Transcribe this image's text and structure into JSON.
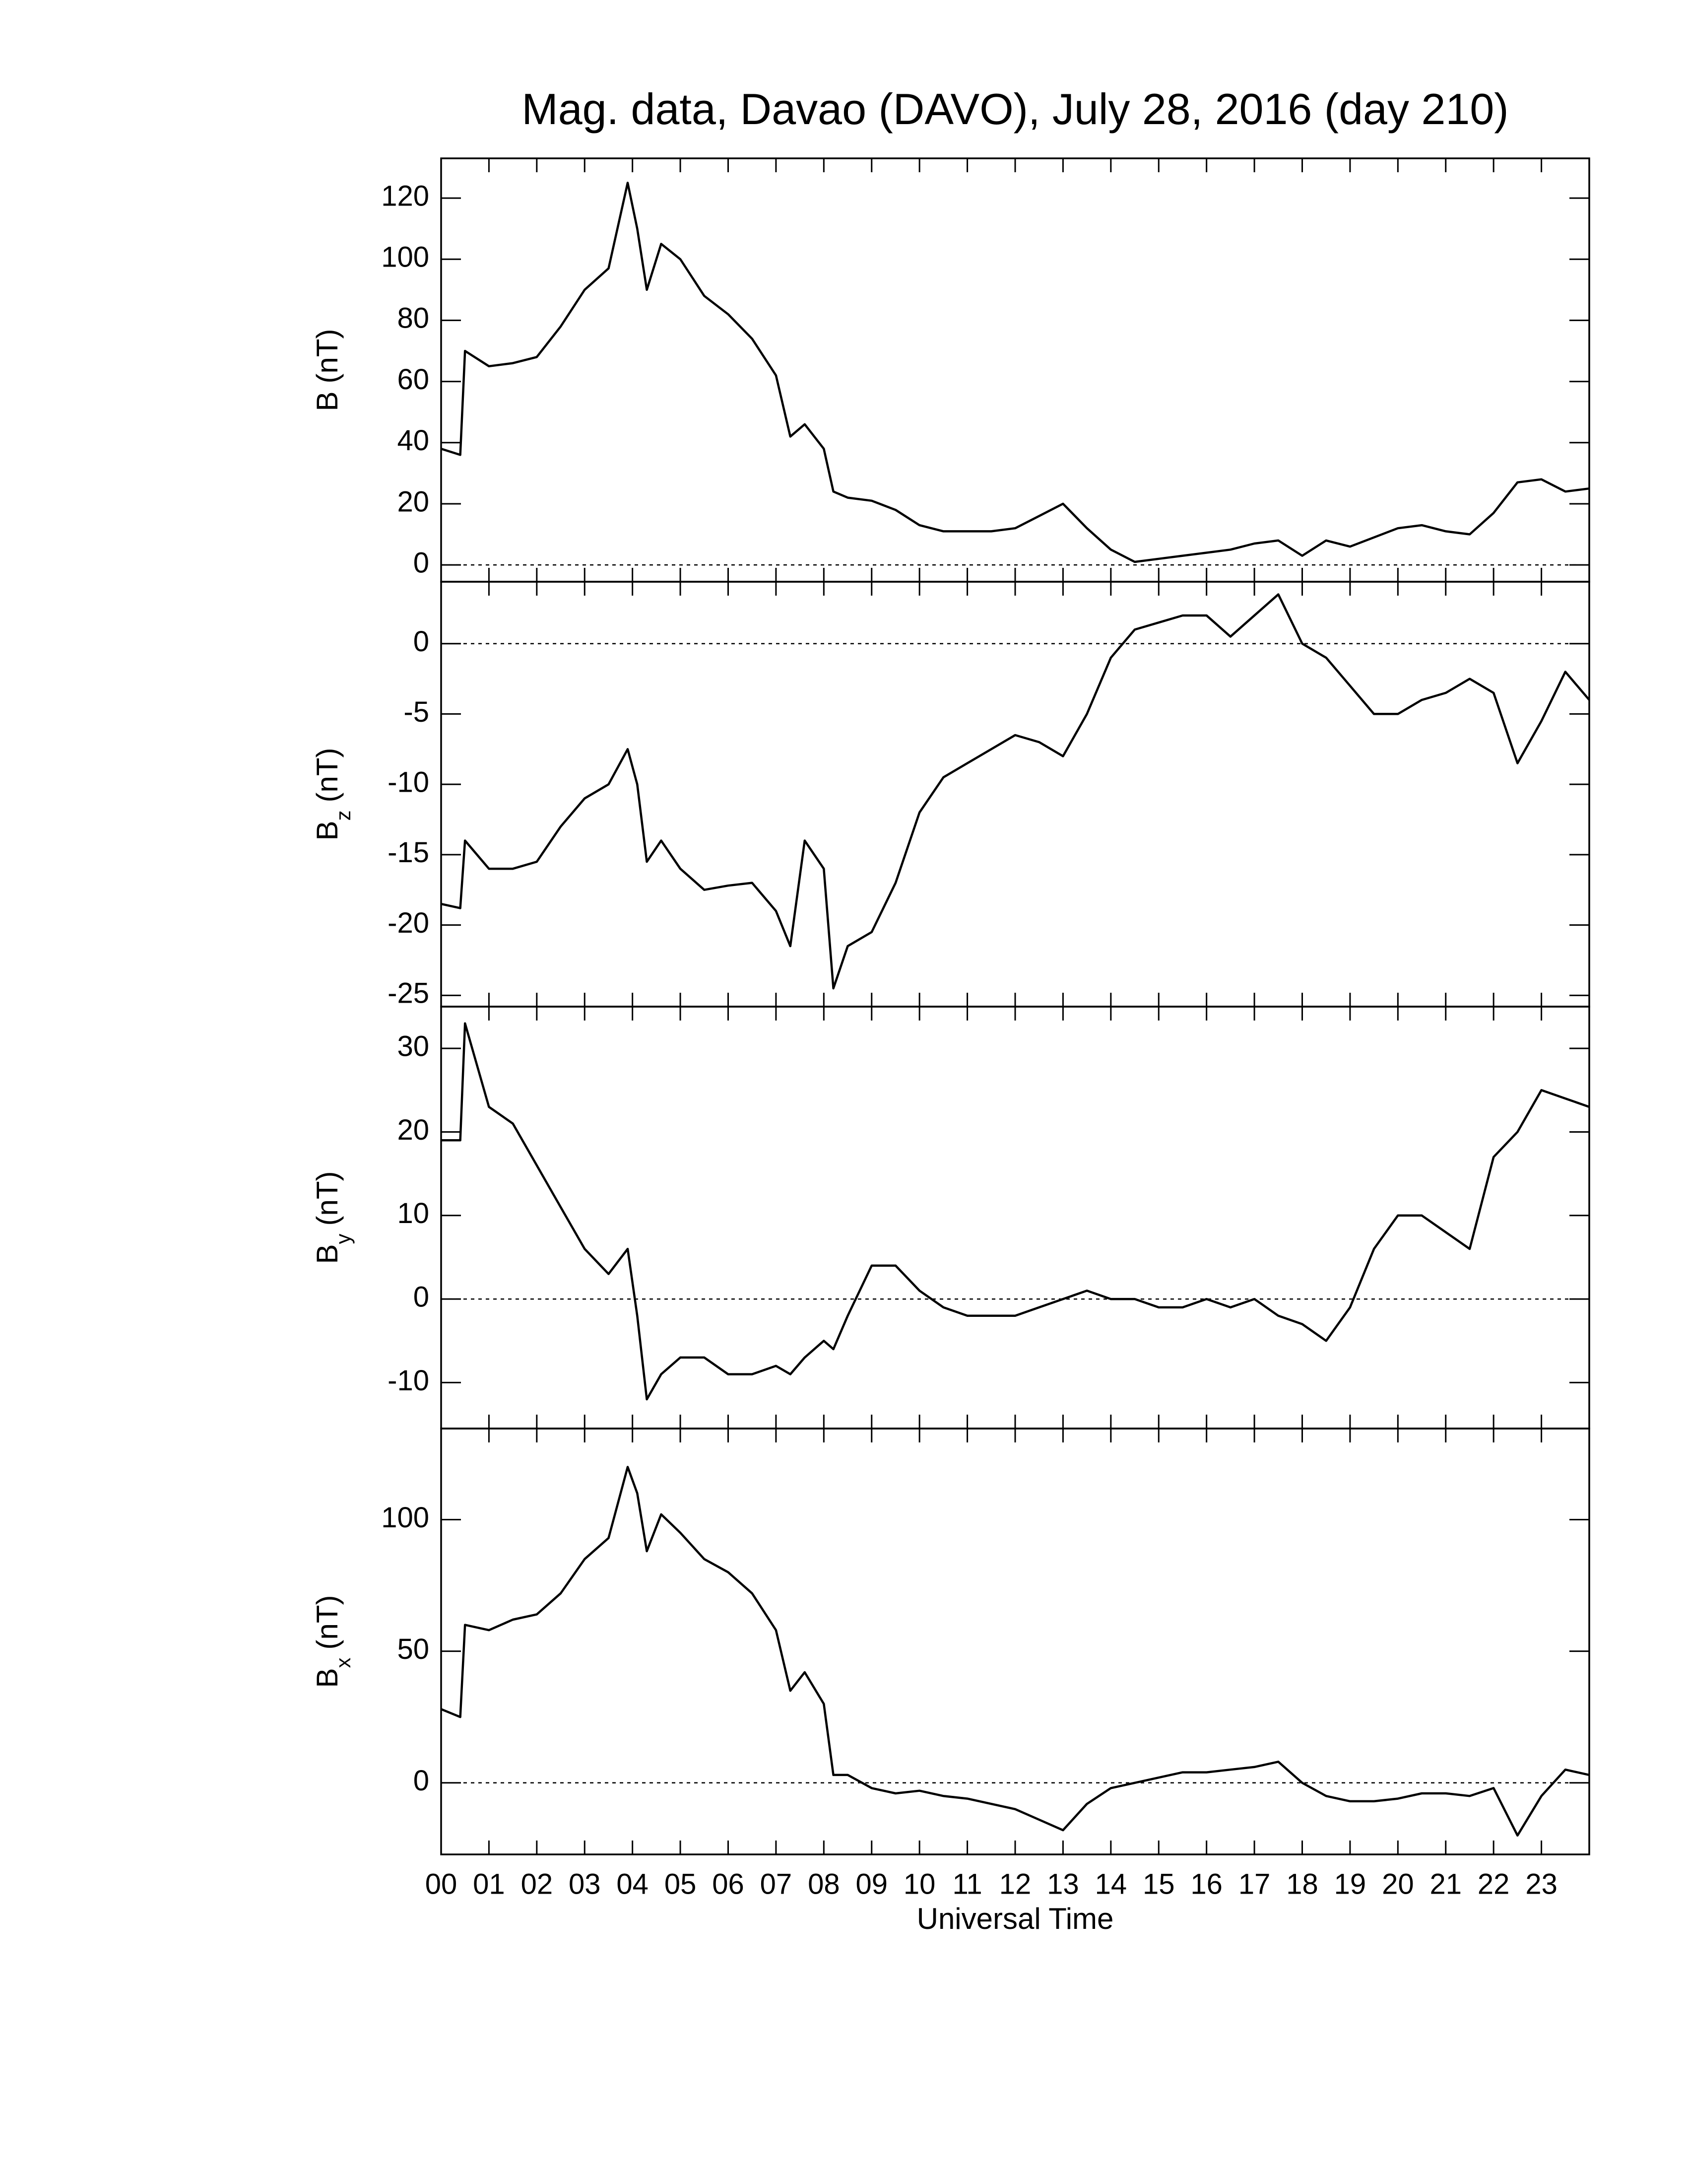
{
  "chart_data": [
    {
      "type": "line",
      "title": "Mag. data, Davao (DAVO), July 28, 2016 (day 210)",
      "ylabel": "B",
      "ylabel_unit": "(nT)",
      "color": "#000000",
      "zero_line": true,
      "xlim": [
        0,
        24
      ],
      "ylim": [
        -5.5,
        133
      ],
      "yticks": [
        0,
        20,
        40,
        60,
        80,
        100,
        120
      ],
      "x": [
        0,
        0.4,
        0.5,
        1,
        1.5,
        2,
        2.5,
        3,
        3.5,
        3.9,
        4.1,
        4.3,
        4.6,
        5,
        5.5,
        6,
        6.5,
        7,
        7.3,
        7.6,
        8,
        8.2,
        8.5,
        9,
        9.5,
        10,
        10.5,
        11,
        11.5,
        12,
        12.5,
        13,
        13.5,
        14,
        14.5,
        15,
        15.5,
        16,
        16.5,
        17,
        17.5,
        18,
        18.5,
        19,
        19.5,
        20,
        20.5,
        21,
        21.5,
        22,
        22.5,
        23,
        23.5,
        24
      ],
      "values": [
        38,
        36,
        70,
        65,
        66,
        68,
        78,
        90,
        97,
        125,
        110,
        90,
        105,
        100,
        88,
        82,
        74,
        62,
        42,
        46,
        38,
        24,
        22,
        21,
        18,
        13,
        11,
        11,
        11,
        12,
        16,
        20,
        12,
        5,
        1,
        2,
        3,
        4,
        5,
        7,
        8,
        3,
        8,
        6,
        9,
        12,
        13,
        11,
        10,
        17,
        27,
        28,
        24,
        25
      ]
    },
    {
      "type": "line",
      "ylabel": "B",
      "ylabel_sub": "z",
      "ylabel_unit": "(nT)",
      "color": "#000000",
      "zero_line": true,
      "xlim": [
        0,
        24
      ],
      "ylim": [
        -25.8,
        4.4
      ],
      "yticks": [
        -25,
        -20,
        -15,
        -10,
        -5,
        0
      ],
      "x": [
        0,
        0.4,
        0.5,
        1,
        1.5,
        2,
        2.5,
        3,
        3.5,
        3.9,
        4.1,
        4.3,
        4.6,
        5,
        5.5,
        6,
        6.5,
        7,
        7.3,
        7.6,
        8,
        8.2,
        8.5,
        9,
        9.5,
        10,
        10.5,
        11,
        11.5,
        12,
        12.5,
        13,
        13.5,
        14,
        14.5,
        15,
        15.5,
        16,
        16.5,
        17,
        17.5,
        18,
        18.5,
        19,
        19.5,
        20,
        20.5,
        21,
        21.5,
        22,
        22.5,
        23,
        23.5,
        24
      ],
      "values": [
        -18.5,
        -18.8,
        -14,
        -16,
        -16,
        -15.5,
        -13,
        -11,
        -10,
        -7.5,
        -10,
        -15.5,
        -14,
        -16,
        -17.5,
        -17.2,
        -17,
        -19,
        -21.5,
        -14,
        -16,
        -24.5,
        -21.5,
        -20.5,
        -17,
        -12,
        -9.5,
        -8.5,
        -7.5,
        -6.5,
        -7,
        -8,
        -5,
        -1,
        1,
        1.5,
        2,
        2,
        0.5,
        2,
        3.5,
        0,
        -1,
        -3,
        -5,
        -5,
        -4,
        -3.5,
        -2.5,
        -3.5,
        -8.5,
        -5.5,
        -2,
        -4
      ]
    },
    {
      "type": "line",
      "ylabel": "B",
      "ylabel_sub": "y",
      "ylabel_unit": "(nT)",
      "color": "#000000",
      "zero_line": true,
      "xlim": [
        0,
        24
      ],
      "ylim": [
        -15.5,
        35
      ],
      "yticks": [
        -10,
        0,
        10,
        20,
        30
      ],
      "x": [
        0,
        0.4,
        0.5,
        1,
        1.5,
        2,
        2.5,
        3,
        3.5,
        3.9,
        4.1,
        4.3,
        4.6,
        5,
        5.5,
        6,
        6.5,
        7,
        7.3,
        7.6,
        8,
        8.2,
        8.5,
        9,
        9.5,
        10,
        10.5,
        11,
        11.5,
        12,
        12.5,
        13,
        13.5,
        14,
        14.5,
        15,
        15.5,
        16,
        16.5,
        17,
        17.5,
        18,
        18.5,
        19,
        19.5,
        20,
        20.5,
        21,
        21.5,
        22,
        22.5,
        23,
        23.5,
        24
      ],
      "values": [
        19,
        19,
        33,
        23,
        21,
        16,
        11,
        6,
        3,
        6,
        -2,
        -12,
        -9,
        -7,
        -7,
        -9,
        -9,
        -8,
        -9,
        -7,
        -5,
        -6,
        -2,
        4,
        4,
        1,
        -1,
        -2,
        -2,
        -2,
        -1,
        0,
        1,
        0,
        0,
        -1,
        -1,
        0,
        -1,
        0,
        -2,
        -3,
        -5,
        -1,
        6,
        10,
        10,
        8,
        6,
        17,
        20,
        25,
        24,
        23
      ]
    },
    {
      "type": "line",
      "ylabel": "B",
      "ylabel_sub": "x",
      "ylabel_unit": "(nT)",
      "xlabel": "Universal Time",
      "color": "#000000",
      "zero_line": true,
      "xlim": [
        0,
        24
      ],
      "ylim": [
        -27.2,
        134.6
      ],
      "yticks": [
        0,
        50,
        100
      ],
      "xticks": [
        {
          "value": 0,
          "label": "00"
        },
        {
          "value": 1,
          "label": "01"
        },
        {
          "value": 2,
          "label": "02"
        },
        {
          "value": 3,
          "label": "03"
        },
        {
          "value": 4,
          "label": "04"
        },
        {
          "value": 5,
          "label": "05"
        },
        {
          "value": 6,
          "label": "06"
        },
        {
          "value": 7,
          "label": "07"
        },
        {
          "value": 8,
          "label": "08"
        },
        {
          "value": 9,
          "label": "09"
        },
        {
          "value": 10,
          "label": "10"
        },
        {
          "value": 11,
          "label": "11"
        },
        {
          "value": 12,
          "label": "12"
        },
        {
          "value": 13,
          "label": "13"
        },
        {
          "value": 14,
          "label": "14"
        },
        {
          "value": 15,
          "label": "15"
        },
        {
          "value": 16,
          "label": "16"
        },
        {
          "value": 17,
          "label": "17"
        },
        {
          "value": 18,
          "label": "18"
        },
        {
          "value": 19,
          "label": "19"
        },
        {
          "value": 20,
          "label": "20"
        },
        {
          "value": 21,
          "label": "21"
        },
        {
          "value": 22,
          "label": "22"
        },
        {
          "value": 23,
          "label": "23"
        }
      ],
      "x": [
        0,
        0.4,
        0.5,
        1,
        1.5,
        2,
        2.5,
        3,
        3.5,
        3.9,
        4.1,
        4.3,
        4.6,
        5,
        5.5,
        6,
        6.5,
        7,
        7.3,
        7.6,
        8,
        8.2,
        8.5,
        9,
        9.5,
        10,
        10.5,
        11,
        11.5,
        12,
        12.5,
        13,
        13.5,
        14,
        14.5,
        15,
        15.5,
        16,
        16.5,
        17,
        17.5,
        18,
        18.5,
        19,
        19.5,
        20,
        20.5,
        21,
        21.5,
        22,
        22.5,
        23,
        23.5,
        24
      ],
      "values": [
        28,
        25,
        60,
        58,
        62,
        64,
        72,
        85,
        93,
        120,
        110,
        88,
        102,
        95,
        85,
        80,
        72,
        58,
        35,
        42,
        30,
        3,
        3,
        -2,
        -4,
        -3,
        -5,
        -6,
        -8,
        -10,
        -14,
        -18,
        -8,
        -2,
        0,
        2,
        4,
        4,
        5,
        6,
        8,
        0,
        -5,
        -7,
        -7,
        -6,
        -4,
        -4,
        -5,
        -2,
        -20,
        -5,
        5,
        3
      ]
    }
  ]
}
